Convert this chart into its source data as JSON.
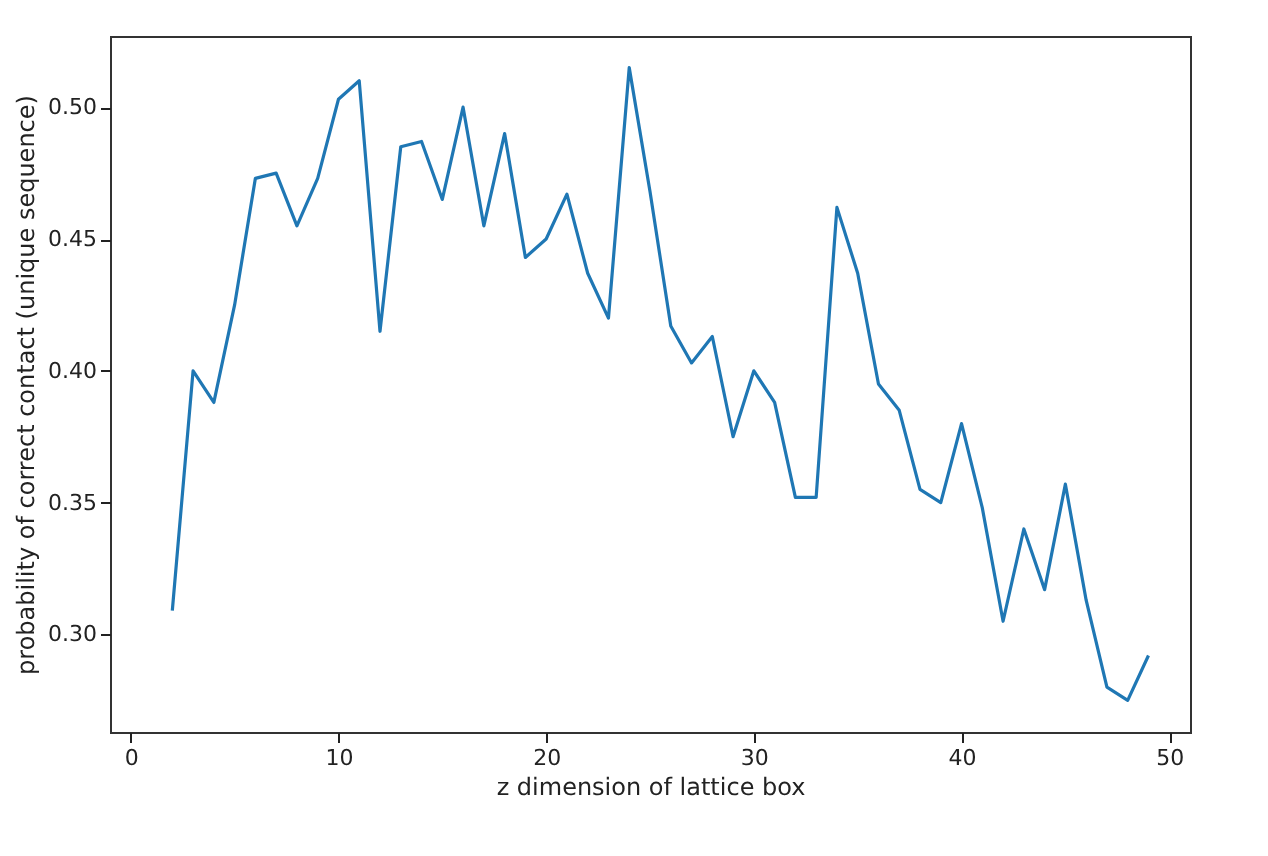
{
  "chart_data": {
    "type": "line",
    "xlabel": "z dimension of lattice box",
    "ylabel": "probability of correct contact (unique sequence)",
    "x": [
      2,
      3,
      4,
      5,
      6,
      7,
      8,
      9,
      10,
      11,
      12,
      13,
      14,
      15,
      16,
      17,
      18,
      19,
      20,
      21,
      22,
      23,
      24,
      25,
      26,
      27,
      28,
      29,
      30,
      31,
      32,
      33,
      34,
      35,
      36,
      37,
      38,
      39,
      40,
      41,
      42,
      43,
      44,
      45,
      46,
      47,
      48,
      49
    ],
    "series": [
      {
        "color": "#1f77b4",
        "values": [
          0.309,
          0.4,
          0.388,
          0.425,
          0.473,
          0.475,
          0.455,
          0.473,
          0.503,
          0.51,
          0.415,
          0.485,
          0.487,
          0.465,
          0.5,
          0.455,
          0.49,
          0.443,
          0.45,
          0.467,
          0.437,
          0.42,
          0.515,
          0.468,
          0.417,
          0.403,
          0.413,
          0.375,
          0.4,
          0.388,
          0.352,
          0.352,
          0.462,
          0.437,
          0.395,
          0.385,
          0.355,
          0.35,
          0.38,
          0.348,
          0.305,
          0.34,
          0.317,
          0.357,
          0.313,
          0.28,
          0.275,
          0.292
        ]
      }
    ],
    "xlim": [
      -1,
      51
    ],
    "xticks": [
      0,
      10,
      20,
      30,
      40,
      50
    ],
    "ylim": [
      0.263,
      0.527
    ],
    "yticks": [
      {
        "value": 0.3,
        "label": "0.30"
      },
      {
        "value": 0.35,
        "label": "0.35"
      },
      {
        "value": 0.4,
        "label": "0.40"
      },
      {
        "value": 0.45,
        "label": "0.45"
      },
      {
        "value": 0.5,
        "label": "0.50"
      }
    ],
    "grid": false,
    "marker": "none",
    "line_style": "solid",
    "legend": false
  }
}
